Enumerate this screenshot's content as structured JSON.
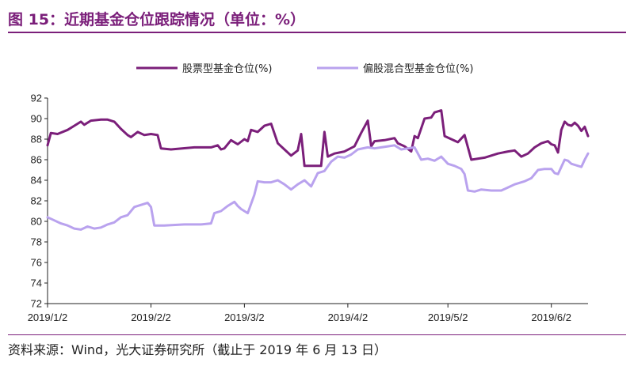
{
  "figure": {
    "title": "图 15：近期基金仓位跟踪情况（单位：%）",
    "source": "资料来源：Wind，光大证券研究所（截止于 2019 年 6 月 13 日）"
  },
  "chart_data": {
    "type": "line",
    "title": "",
    "xlabel": "",
    "ylabel": "",
    "ylim": [
      72,
      92
    ],
    "yticks": [
      72,
      74,
      76,
      78,
      80,
      82,
      84,
      86,
      88,
      90,
      92
    ],
    "xlim": [
      "2019-01-02",
      "2019-06-13"
    ],
    "xticks": [
      {
        "date": "2019-01-02",
        "label": "2019/1/2"
      },
      {
        "date": "2019-02-02",
        "label": "2019/2/2"
      },
      {
        "date": "2019-03-02",
        "label": "2019/3/2"
      },
      {
        "date": "2019-04-02",
        "label": "2019/4/2"
      },
      {
        "date": "2019-05-02",
        "label": "2019/5/2"
      },
      {
        "date": "2019-06-02",
        "label": "2019/6/2"
      }
    ],
    "grid": false,
    "legend_position": "top",
    "series": [
      {
        "name": "股票型基金仓位(%)",
        "color": "#7b1f7a",
        "points": [
          [
            "2019-01-02",
            87.4
          ],
          [
            "2019-01-03",
            88.6
          ],
          [
            "2019-01-05",
            88.5
          ],
          [
            "2019-01-08",
            88.9
          ],
          [
            "2019-01-10",
            89.3
          ],
          [
            "2019-01-12",
            89.7
          ],
          [
            "2019-01-13",
            89.4
          ],
          [
            "2019-01-15",
            89.8
          ],
          [
            "2019-01-18",
            89.9
          ],
          [
            "2019-01-20",
            89.9
          ],
          [
            "2019-01-22",
            89.7
          ],
          [
            "2019-01-24",
            89.0
          ],
          [
            "2019-01-26",
            88.4
          ],
          [
            "2019-01-27",
            88.2
          ],
          [
            "2019-01-29",
            88.7
          ],
          [
            "2019-01-31",
            88.4
          ],
          [
            "2019-02-02",
            88.5
          ],
          [
            "2019-02-04",
            88.4
          ],
          [
            "2019-02-05",
            87.1
          ],
          [
            "2019-02-08",
            87.0
          ],
          [
            "2019-02-15",
            87.2
          ],
          [
            "2019-02-20",
            87.2
          ],
          [
            "2019-02-22",
            87.4
          ],
          [
            "2019-02-23",
            87.0
          ],
          [
            "2019-02-24",
            87.1
          ],
          [
            "2019-02-26",
            87.9
          ],
          [
            "2019-02-28",
            87.5
          ],
          [
            "2019-03-02",
            88.0
          ],
          [
            "2019-03-03",
            87.8
          ],
          [
            "2019-03-04",
            88.9
          ],
          [
            "2019-03-06",
            88.7
          ],
          [
            "2019-03-08",
            89.3
          ],
          [
            "2019-03-10",
            89.5
          ],
          [
            "2019-03-12",
            87.6
          ],
          [
            "2019-03-14",
            87.0
          ],
          [
            "2019-03-16",
            86.4
          ],
          [
            "2019-03-18",
            86.9
          ],
          [
            "2019-03-19",
            88.5
          ],
          [
            "2019-03-20",
            85.4
          ],
          [
            "2019-03-25",
            85.4
          ],
          [
            "2019-03-26",
            88.7
          ],
          [
            "2019-03-27",
            86.3
          ],
          [
            "2019-03-29",
            86.6
          ],
          [
            "2019-04-01",
            86.8
          ],
          [
            "2019-04-04",
            87.3
          ],
          [
            "2019-04-06",
            88.6
          ],
          [
            "2019-04-08",
            89.8
          ],
          [
            "2019-04-09",
            87.3
          ],
          [
            "2019-04-10",
            87.8
          ],
          [
            "2019-04-13",
            87.9
          ],
          [
            "2019-04-16",
            88.1
          ],
          [
            "2019-04-17",
            87.6
          ],
          [
            "2019-04-19",
            87.3
          ],
          [
            "2019-04-21",
            86.8
          ],
          [
            "2019-04-22",
            88.3
          ],
          [
            "2019-04-23",
            88.1
          ],
          [
            "2019-04-25",
            90.0
          ],
          [
            "2019-04-27",
            90.1
          ],
          [
            "2019-04-28",
            90.6
          ],
          [
            "2019-04-30",
            90.8
          ],
          [
            "2019-05-01",
            88.3
          ],
          [
            "2019-05-03",
            88.0
          ],
          [
            "2019-05-05",
            87.7
          ],
          [
            "2019-05-07",
            88.4
          ],
          [
            "2019-05-09",
            86.0
          ],
          [
            "2019-05-13",
            86.2
          ],
          [
            "2019-05-17",
            86.6
          ],
          [
            "2019-05-20",
            86.8
          ],
          [
            "2019-05-22",
            86.9
          ],
          [
            "2019-05-24",
            86.3
          ],
          [
            "2019-05-26",
            86.6
          ],
          [
            "2019-05-28",
            87.2
          ],
          [
            "2019-05-30",
            87.6
          ],
          [
            "2019-06-01",
            87.8
          ],
          [
            "2019-06-02",
            87.5
          ],
          [
            "2019-06-03",
            87.4
          ],
          [
            "2019-06-04",
            86.7
          ],
          [
            "2019-06-05",
            88.9
          ],
          [
            "2019-06-06",
            89.7
          ],
          [
            "2019-06-07",
            89.4
          ],
          [
            "2019-06-08",
            89.3
          ],
          [
            "2019-06-09",
            89.6
          ],
          [
            "2019-06-10",
            89.3
          ],
          [
            "2019-06-11",
            88.8
          ],
          [
            "2019-06-12",
            89.2
          ],
          [
            "2019-06-13",
            88.3
          ]
        ]
      },
      {
        "name": "偏股混合型基金仓位(%)",
        "color": "#b9a2ee",
        "points": [
          [
            "2019-01-02",
            80.4
          ],
          [
            "2019-01-04",
            80.1
          ],
          [
            "2019-01-06",
            79.8
          ],
          [
            "2019-01-08",
            79.6
          ],
          [
            "2019-01-10",
            79.3
          ],
          [
            "2019-01-12",
            79.2
          ],
          [
            "2019-01-14",
            79.5
          ],
          [
            "2019-01-16",
            79.3
          ],
          [
            "2019-01-18",
            79.4
          ],
          [
            "2019-01-20",
            79.7
          ],
          [
            "2019-01-22",
            79.9
          ],
          [
            "2019-01-24",
            80.4
          ],
          [
            "2019-01-26",
            80.6
          ],
          [
            "2019-01-28",
            81.4
          ],
          [
            "2019-02-01",
            81.8
          ],
          [
            "2019-02-02",
            81.4
          ],
          [
            "2019-02-03",
            79.6
          ],
          [
            "2019-02-06",
            79.6
          ],
          [
            "2019-02-12",
            79.7
          ],
          [
            "2019-02-17",
            79.7
          ],
          [
            "2019-02-20",
            79.8
          ],
          [
            "2019-02-21",
            80.8
          ],
          [
            "2019-02-23",
            81.0
          ],
          [
            "2019-02-25",
            81.5
          ],
          [
            "2019-02-27",
            81.9
          ],
          [
            "2019-02-28",
            81.5
          ],
          [
            "2019-03-01",
            81.2
          ],
          [
            "2019-03-03",
            80.8
          ],
          [
            "2019-03-05",
            82.6
          ],
          [
            "2019-03-06",
            83.9
          ],
          [
            "2019-03-08",
            83.8
          ],
          [
            "2019-03-10",
            83.8
          ],
          [
            "2019-03-12",
            84.0
          ],
          [
            "2019-03-14",
            83.6
          ],
          [
            "2019-03-16",
            83.1
          ],
          [
            "2019-03-18",
            83.6
          ],
          [
            "2019-03-20",
            84.0
          ],
          [
            "2019-03-22",
            83.4
          ],
          [
            "2019-03-24",
            84.7
          ],
          [
            "2019-03-26",
            84.9
          ],
          [
            "2019-03-28",
            85.8
          ],
          [
            "2019-03-30",
            86.3
          ],
          [
            "2019-04-01",
            86.2
          ],
          [
            "2019-04-03",
            86.5
          ],
          [
            "2019-04-05",
            87.0
          ],
          [
            "2019-04-08",
            87.2
          ],
          [
            "2019-04-10",
            87.1
          ],
          [
            "2019-04-12",
            87.2
          ],
          [
            "2019-04-14",
            87.3
          ],
          [
            "2019-04-16",
            87.4
          ],
          [
            "2019-04-18",
            87.0
          ],
          [
            "2019-04-20",
            87.1
          ],
          [
            "2019-04-22",
            87.2
          ],
          [
            "2019-04-24",
            86.0
          ],
          [
            "2019-04-26",
            86.1
          ],
          [
            "2019-04-28",
            85.9
          ],
          [
            "2019-04-30",
            86.3
          ],
          [
            "2019-05-02",
            85.6
          ],
          [
            "2019-05-04",
            85.4
          ],
          [
            "2019-05-06",
            85.1
          ],
          [
            "2019-05-07",
            84.6
          ],
          [
            "2019-05-08",
            83.0
          ],
          [
            "2019-05-10",
            82.9
          ],
          [
            "2019-05-12",
            83.1
          ],
          [
            "2019-05-15",
            83.0
          ],
          [
            "2019-05-18",
            83.0
          ],
          [
            "2019-05-20",
            83.3
          ],
          [
            "2019-05-22",
            83.6
          ],
          [
            "2019-05-25",
            83.9
          ],
          [
            "2019-05-27",
            84.2
          ],
          [
            "2019-05-29",
            85.0
          ],
          [
            "2019-05-31",
            85.1
          ],
          [
            "2019-06-02",
            85.1
          ],
          [
            "2019-06-03",
            84.7
          ],
          [
            "2019-06-04",
            84.6
          ],
          [
            "2019-06-05",
            85.3
          ],
          [
            "2019-06-06",
            86.0
          ],
          [
            "2019-06-07",
            85.9
          ],
          [
            "2019-06-08",
            85.6
          ],
          [
            "2019-06-09",
            85.5
          ],
          [
            "2019-06-10",
            85.4
          ],
          [
            "2019-06-11",
            85.3
          ],
          [
            "2019-06-12",
            86.0
          ],
          [
            "2019-06-13",
            86.6
          ]
        ]
      }
    ]
  }
}
